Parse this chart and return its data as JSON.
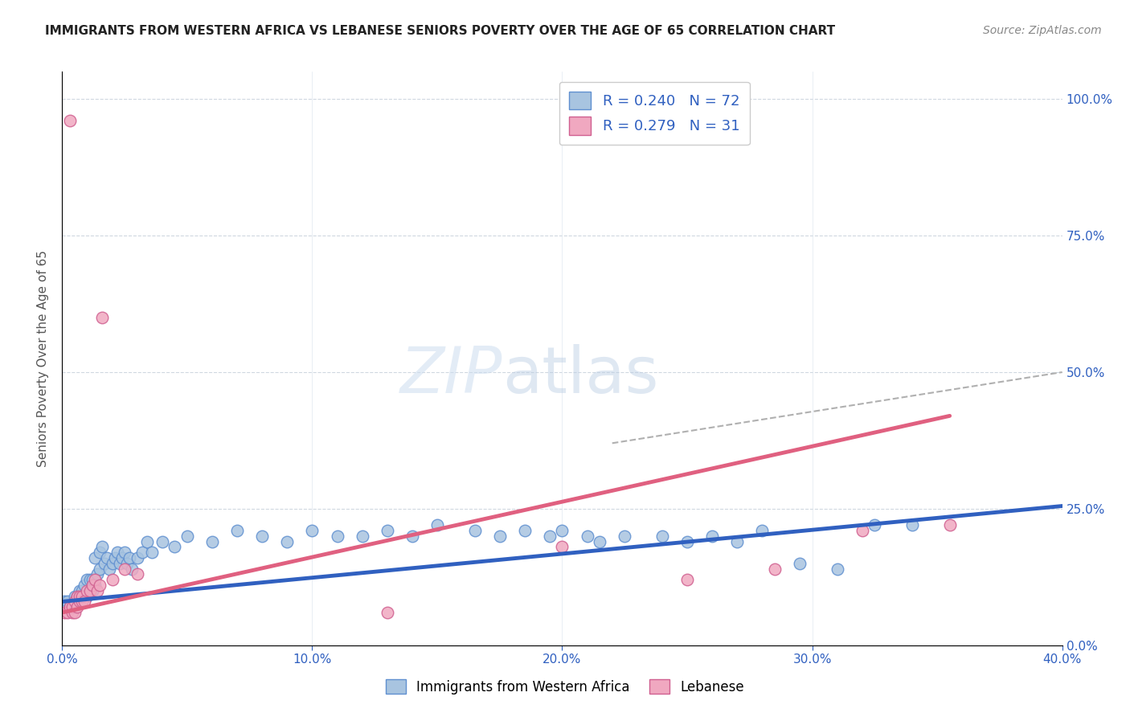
{
  "title": "IMMIGRANTS FROM WESTERN AFRICA VS LEBANESE SENIORS POVERTY OVER THE AGE OF 65 CORRELATION CHART",
  "source": "Source: ZipAtlas.com",
  "ylabel": "Seniors Poverty Over the Age of 65",
  "xlim": [
    0.0,
    0.4
  ],
  "ylim": [
    0.0,
    1.05
  ],
  "xtick_labels": [
    "0.0%",
    "10.0%",
    "20.0%",
    "30.0%",
    "40.0%"
  ],
  "xtick_vals": [
    0.0,
    0.1,
    0.2,
    0.3,
    0.4
  ],
  "ytick_labels_right": [
    "0.0%",
    "25.0%",
    "50.0%",
    "75.0%",
    "100.0%"
  ],
  "ytick_vals_right": [
    0.0,
    0.25,
    0.5,
    0.75,
    1.0
  ],
  "blue_R": 0.24,
  "blue_N": 72,
  "pink_R": 0.279,
  "pink_N": 31,
  "blue_color": "#a8c4e0",
  "pink_color": "#f0a8c0",
  "blue_edge_color": "#6090d0",
  "pink_edge_color": "#d06090",
  "blue_line_color": "#3060c0",
  "pink_line_color": "#e06080",
  "dashed_line_color": "#b0b0b0",
  "legend_blue_label": "Immigrants from Western Africa",
  "legend_pink_label": "Lebanese",
  "blue_trend_x": [
    0.0,
    0.4
  ],
  "blue_trend_y": [
    0.08,
    0.255
  ],
  "pink_trend_x": [
    0.0,
    0.355
  ],
  "pink_trend_y": [
    0.06,
    0.42
  ],
  "dashed_trend_x": [
    0.22,
    0.4
  ],
  "dashed_trend_y": [
    0.37,
    0.5
  ],
  "blue_scatter_x": [
    0.001,
    0.002,
    0.003,
    0.004,
    0.005,
    0.005,
    0.006,
    0.006,
    0.007,
    0.007,
    0.008,
    0.008,
    0.009,
    0.009,
    0.01,
    0.01,
    0.011,
    0.011,
    0.012,
    0.012,
    0.013,
    0.013,
    0.014,
    0.015,
    0.015,
    0.016,
    0.017,
    0.018,
    0.019,
    0.02,
    0.021,
    0.022,
    0.023,
    0.024,
    0.025,
    0.026,
    0.027,
    0.028,
    0.03,
    0.032,
    0.034,
    0.036,
    0.04,
    0.045,
    0.05,
    0.06,
    0.07,
    0.08,
    0.09,
    0.1,
    0.11,
    0.12,
    0.13,
    0.14,
    0.15,
    0.165,
    0.175,
    0.185,
    0.195,
    0.2,
    0.21,
    0.215,
    0.225,
    0.24,
    0.25,
    0.26,
    0.27,
    0.28,
    0.295,
    0.31,
    0.325,
    0.34
  ],
  "blue_scatter_y": [
    0.08,
    0.08,
    0.07,
    0.07,
    0.07,
    0.09,
    0.08,
    0.09,
    0.08,
    0.1,
    0.09,
    0.1,
    0.09,
    0.11,
    0.09,
    0.12,
    0.1,
    0.12,
    0.1,
    0.12,
    0.11,
    0.16,
    0.13,
    0.17,
    0.14,
    0.18,
    0.15,
    0.16,
    0.14,
    0.15,
    0.16,
    0.17,
    0.15,
    0.16,
    0.17,
    0.15,
    0.16,
    0.14,
    0.16,
    0.17,
    0.19,
    0.17,
    0.19,
    0.18,
    0.2,
    0.19,
    0.21,
    0.2,
    0.19,
    0.21,
    0.2,
    0.2,
    0.21,
    0.2,
    0.22,
    0.21,
    0.2,
    0.21,
    0.2,
    0.21,
    0.2,
    0.19,
    0.2,
    0.2,
    0.19,
    0.2,
    0.19,
    0.21,
    0.15,
    0.14,
    0.22,
    0.22
  ],
  "pink_scatter_x": [
    0.001,
    0.002,
    0.003,
    0.003,
    0.004,
    0.004,
    0.005,
    0.005,
    0.006,
    0.006,
    0.007,
    0.007,
    0.008,
    0.008,
    0.009,
    0.01,
    0.011,
    0.012,
    0.013,
    0.014,
    0.015,
    0.016,
    0.02,
    0.025,
    0.03,
    0.13,
    0.2,
    0.25,
    0.285,
    0.32,
    0.355
  ],
  "pink_scatter_y": [
    0.06,
    0.06,
    0.96,
    0.07,
    0.06,
    0.07,
    0.06,
    0.08,
    0.07,
    0.09,
    0.08,
    0.09,
    0.08,
    0.09,
    0.08,
    0.1,
    0.1,
    0.11,
    0.12,
    0.1,
    0.11,
    0.6,
    0.12,
    0.14,
    0.13,
    0.06,
    0.18,
    0.12,
    0.14,
    0.21,
    0.22
  ]
}
